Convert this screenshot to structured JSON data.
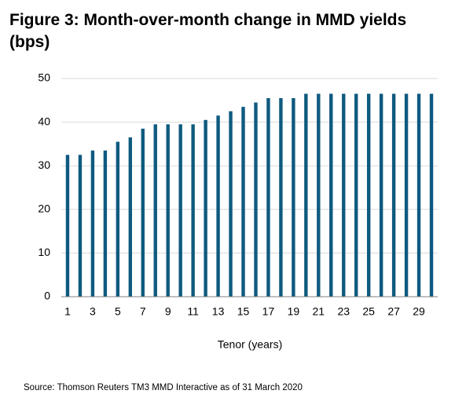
{
  "chart_data": {
    "type": "bar",
    "title": "Figure 3: Month-over-month change in MMD yields (bps)",
    "x_label": "Tenor (years)",
    "source": "Source: Thomson Reuters TM3 MMD Interactive as of 31 March 2020",
    "categories": [
      "1",
      null,
      "3",
      null,
      "5",
      null,
      "7",
      null,
      "9",
      null,
      "11",
      null,
      "13",
      null,
      "15",
      null,
      "17",
      null,
      "19",
      null,
      "21",
      null,
      "23",
      null,
      "25",
      null,
      "27",
      null,
      "29",
      null
    ],
    "values": [
      32.5,
      32.5,
      33.5,
      33.5,
      35.5,
      36.5,
      38.5,
      39.5,
      39.5,
      39.5,
      39.5,
      40.5,
      41.5,
      42.5,
      43.5,
      44.5,
      45.5,
      45.5,
      45.5,
      46.5,
      46.5,
      46.5,
      46.5,
      46.5,
      46.5,
      46.5,
      46.5,
      46.5,
      46.5,
      46.5
    ],
    "color": "#0f5a7f",
    "ylim": [
      0,
      50
    ],
    "yticks": [
      0,
      10,
      20,
      30,
      40,
      50
    ],
    "grid": true
  }
}
